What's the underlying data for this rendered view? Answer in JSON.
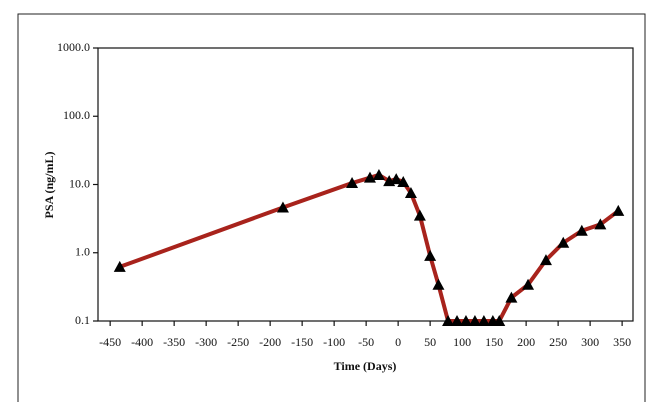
{
  "chart_data": {
    "type": "line",
    "log_y": true,
    "x_label": "Time (Days)",
    "y_label": "PSA (ng/mL)",
    "x": [
      -435,
      -180,
      -72,
      -44,
      -30,
      -14,
      -3,
      8,
      20,
      34,
      50,
      63,
      78,
      92,
      106,
      120,
      134,
      148,
      158,
      177,
      203,
      231,
      258,
      287,
      316,
      344
    ],
    "values": [
      0.62,
      4.6,
      10.5,
      12.6,
      13.8,
      11.2,
      12.0,
      10.9,
      7.5,
      3.5,
      0.9,
      0.34,
      0.1,
      0.1,
      0.1,
      0.1,
      0.1,
      0.1,
      0.1,
      0.22,
      0.34,
      0.78,
      1.4,
      2.1,
      2.6,
      4.1
    ],
    "color": "#a8231c",
    "marker_color": "#000000",
    "xlim": [
      -469,
      367
    ],
    "xticks": [
      -450,
      -400,
      -350,
      -300,
      -250,
      -200,
      -150,
      -100,
      -50,
      0,
      50,
      100,
      150,
      200,
      250,
      300,
      350
    ],
    "ylim": [
      0.1,
      1000
    ],
    "yticks": [
      0.1,
      {
        "value": 1,
        "label": "1.0"
      },
      {
        "value": 10,
        "label": "10.0"
      },
      {
        "value": 100,
        "label": "100.0"
      },
      {
        "value": 1000,
        "label": "1000.0"
      }
    ],
    "grid": false
  }
}
